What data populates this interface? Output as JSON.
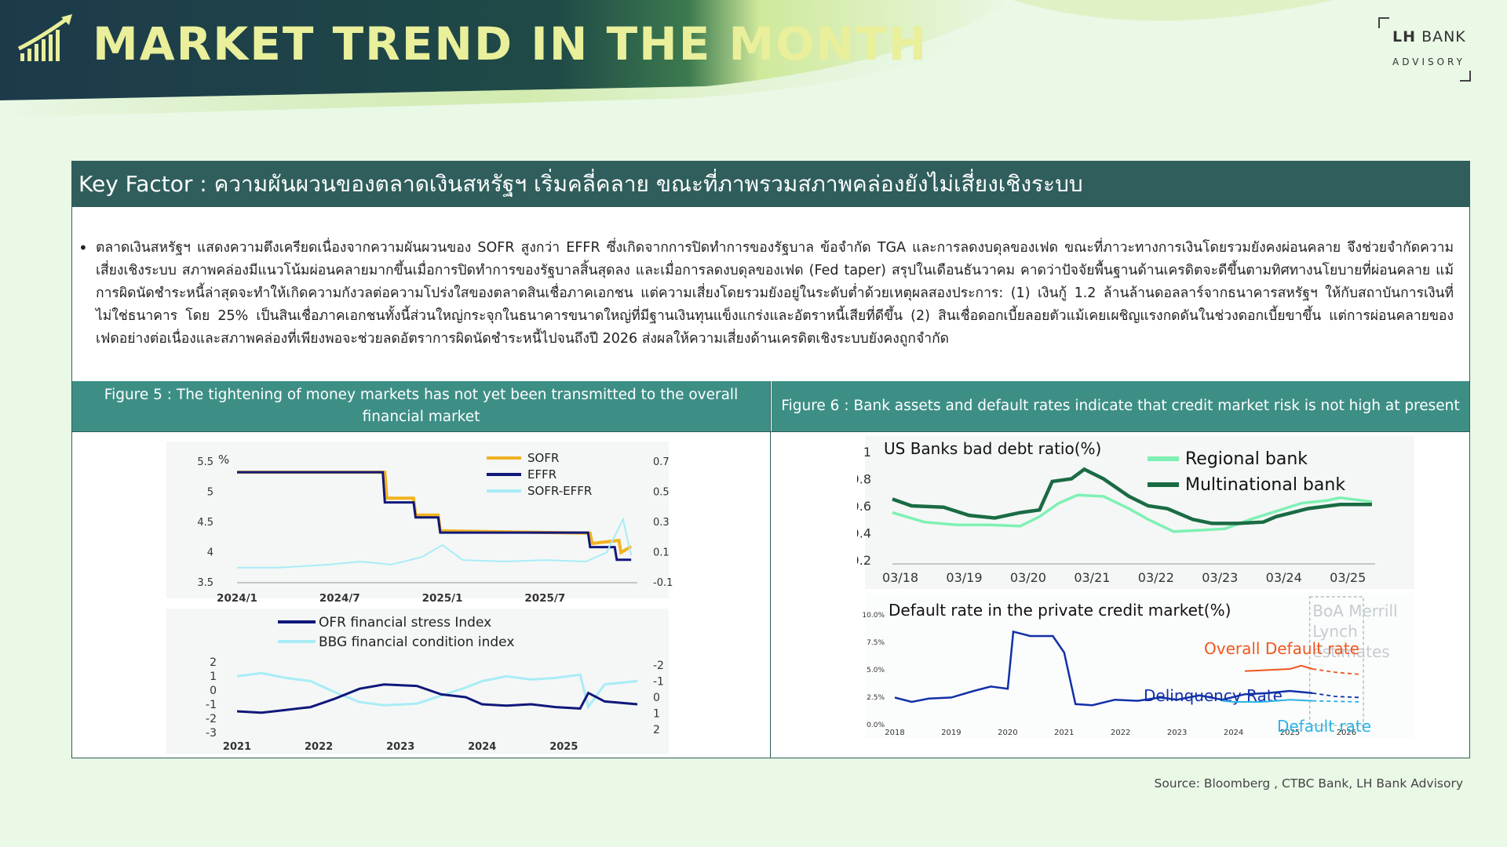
{
  "header": {
    "title": "MARKET TREND IN THE MONTH",
    "logo_lh": "LH",
    "logo_bank": "BANK",
    "logo_advisory": "ADVISORY"
  },
  "colors": {
    "header_dark": "#1d3a4a",
    "panel_teal": "#2f5e5c",
    "figure_teal": "#3d8f86",
    "sofr": "#f2b320",
    "effr": "#10187a",
    "spread": "#a9ecf6",
    "regional": "#7ff0b4",
    "multinational": "#1a6b44",
    "overall_default": "#f0561e",
    "delinquency": "#1130a8",
    "default_rate": "#2ab3e6"
  },
  "key_factor": {
    "title": "Key Factor : ความผันผวนของตลาดเงินสหรัฐฯ เริ่มคลี่คลาย ขณะที่ภาพรวมสภาพคล่องยังไม่เสี่ยงเชิงระบบ",
    "bullet": "ตลาดเงินสหรัฐฯ แสดงความตึงเครียดเนื่องจากความผันผวนของ SOFR สูงกว่า EFFR ซึ่งเกิดจากการปิดทำการของรัฐบาล ข้อจำกัด TGA และการลดงบดุลของเฟด ขณะที่ภาวะทางการเงินโดยรวมยังคงผ่อนคลาย จึงช่วยจำกัดความเสี่ยงเชิงระบบ สภาพคล่องมีแนวโน้มผ่อนคลายมากขึ้นเมื่อการปิดทำการของรัฐบาลสิ้นสุดลง และเมื่อการลดงบดุลของเฟด (Fed taper) สรุปในเดือนธันวาคม คาดว่าปัจจัยพื้นฐานด้านเครดิตจะดีขึ้นตามทิศทางนโยบายที่ผ่อนคลาย แม้การผิดนัดชำระหนี้ล่าสุดจะทำให้เกิดความกังวลต่อความโปร่งใสของตลาดสินเชื่อภาคเอกชน แต่ความเสี่ยงโดยรวมยังอยู่ในระดับต่ำด้วยเหตุผลสองประการ: (1) เงินกู้ 1.2 ล้านล้านดอลลาร์จากธนาคารสหรัฐฯ ให้กับสถาบันการเงินที่ไม่ใช่ธนาคาร โดย 25% เป็นสินเชื่อภาคเอกชนทั้งนี้ส่วนใหญ่กระจุกในธนาคารขนาดใหญ่ที่มีฐานเงินทุนแข็งแกร่งและอัตราหนี้เสียที่ดีขึ้น (2) สินเชื่อดอกเบี้ยลอยตัวแม้เคยเผชิญแรงกดดันในช่วงดอกเบี้ยขาขึ้น แต่การผ่อนคลายของเฟดอย่างต่อเนื่องและสภาพคล่องที่เพียงพอจะช่วยลดอัตราการผิดนัดชำระหนี้ไปจนถึงปี 2026 ส่งผลให้ความเสี่ยงด้านเครดิตเชิงระบบยังคงถูกจำกัด"
  },
  "figure5": {
    "caption": "Figure 5 : The tightening of money markets has not yet been transmitted to the overall financial market"
  },
  "figure6": {
    "caption": "Figure 6 : Bank assets and default rates indicate that credit market risk is not high at present"
  },
  "source": "Source: Bloomberg , CTBC Bank, LH Bank Advisory",
  "chart_data": [
    {
      "id": "sofr-effr",
      "type": "line",
      "y_unit_label": "%",
      "x_ticks": [
        "2024/1",
        "2024/7",
        "2025/1",
        "2025/7"
      ],
      "x_range": [
        2024.0,
        2025.95
      ],
      "x_tick_values": [
        2024.0,
        2024.5,
        2025.0,
        2025.5
      ],
      "ylim_left": [
        3.5,
        5.5
      ],
      "y_ticks_left": [
        "5.5",
        "5",
        "4.5",
        "4",
        "3.5"
      ],
      "ylim_right": [
        -0.1,
        0.7
      ],
      "y_ticks_right": [
        "0.7",
        "0.5",
        "0.3",
        "0.1",
        "-0.1"
      ],
      "legend_position": "top",
      "series": [
        {
          "name": "SOFR",
          "axis": "left",
          "x": [
            2024.0,
            2024.72,
            2024.73,
            2024.86,
            2024.87,
            2024.98,
            2024.99,
            2025.72,
            2025.73,
            2025.86,
            2025.87,
            2025.92
          ],
          "y": [
            5.33,
            5.33,
            4.9,
            4.9,
            4.62,
            4.62,
            4.36,
            4.32,
            4.15,
            4.2,
            4.0,
            4.1
          ]
        },
        {
          "name": "EFFR",
          "axis": "left",
          "x": [
            2024.0,
            2024.71,
            2024.72,
            2024.86,
            2024.87,
            2024.98,
            2024.99,
            2025.71,
            2025.72,
            2025.84,
            2025.85,
            2025.92
          ],
          "y": [
            5.33,
            5.33,
            4.83,
            4.83,
            4.58,
            4.58,
            4.33,
            4.33,
            4.09,
            4.09,
            3.88,
            3.88
          ]
        },
        {
          "name": "SOFR-EFFR",
          "axis": "right",
          "x": [
            2024.0,
            2024.2,
            2024.45,
            2024.6,
            2024.75,
            2024.9,
            2025.0,
            2025.1,
            2025.3,
            2025.5,
            2025.7,
            2025.8,
            2025.88,
            2025.92
          ],
          "y": [
            0.0,
            0.0,
            0.02,
            0.04,
            0.02,
            0.07,
            0.15,
            0.05,
            0.04,
            0.05,
            0.04,
            0.1,
            0.32,
            0.08
          ]
        }
      ]
    },
    {
      "id": "stress-index",
      "type": "line",
      "x_ticks": [
        "2021",
        "2022",
        "2023",
        "2024",
        "2025"
      ],
      "x_range": [
        2021.0,
        2025.9
      ],
      "x_tick_values": [
        2021.0,
        2022.0,
        2023.0,
        2024.0,
        2025.0
      ],
      "ylim_left": [
        -3,
        2
      ],
      "y_ticks_left": [
        "2",
        "1",
        "0",
        "-1",
        "-2",
        "-3"
      ],
      "ylim_right": [
        2,
        -2
      ],
      "y_ticks_right": [
        "-2",
        "-1",
        "0",
        "1",
        "2"
      ],
      "legend_position": "top-left",
      "series": [
        {
          "name": "OFR financial stress Index",
          "axis": "left",
          "x": [
            2021.0,
            2021.3,
            2021.6,
            2021.9,
            2022.2,
            2022.5,
            2022.8,
            2023.2,
            2023.5,
            2023.8,
            2024.0,
            2024.3,
            2024.6,
            2024.9,
            2025.2,
            2025.3,
            2025.5,
            2025.9
          ],
          "y": [
            -1.5,
            -1.6,
            -1.4,
            -1.2,
            -0.6,
            0.1,
            0.4,
            0.3,
            -0.3,
            -0.5,
            -1.0,
            -1.1,
            -1.0,
            -1.2,
            -1.3,
            -0.2,
            -0.8,
            -1.0
          ]
        },
        {
          "name": "BBG financial condition index",
          "axis": "right",
          "x": [
            2021.0,
            2021.3,
            2021.6,
            2021.9,
            2022.2,
            2022.5,
            2022.8,
            2023.2,
            2023.5,
            2023.8,
            2024.0,
            2024.3,
            2024.6,
            2024.9,
            2025.2,
            2025.3,
            2025.5,
            2025.9
          ],
          "y": [
            1.3,
            1.5,
            1.2,
            1.0,
            0.3,
            -0.3,
            -0.5,
            -0.4,
            0.1,
            0.6,
            1.0,
            1.3,
            1.1,
            1.2,
            1.4,
            -0.6,
            0.8,
            1.0
          ]
        }
      ]
    },
    {
      "id": "bad-debt",
      "type": "line",
      "title": "US Banks bad debt ratio(%)",
      "x_ticks": [
        "03/18",
        "03/19",
        "03/20",
        "03/21",
        "03/22",
        "03/23",
        "03/24",
        "03/25"
      ],
      "x_range": [
        2018.0,
        2025.55
      ],
      "x_tick_values": [
        2018.0,
        2019.0,
        2020.0,
        2021.0,
        2022.0,
        2023.0,
        2024.0,
        2025.0
      ],
      "ylim": [
        0.2,
        1.0
      ],
      "y_ticks": [
        "1",
        "0.8",
        "0.6",
        "0.4",
        "0.2"
      ],
      "legend_position": "top-right",
      "series": [
        {
          "name": "Regional bank",
          "x": [
            2018.0,
            2018.5,
            2019.0,
            2019.5,
            2020.0,
            2020.3,
            2020.6,
            2020.9,
            2021.3,
            2021.7,
            2022.0,
            2022.4,
            2022.8,
            2023.2,
            2023.6,
            2024.0,
            2024.4,
            2024.8,
            2025.0,
            2025.5
          ],
          "y": [
            0.55,
            0.48,
            0.46,
            0.46,
            0.45,
            0.52,
            0.62,
            0.68,
            0.67,
            0.58,
            0.5,
            0.41,
            0.42,
            0.43,
            0.5,
            0.56,
            0.62,
            0.64,
            0.66,
            0.63
          ]
        },
        {
          "name": "Multinational bank",
          "x": [
            2018.0,
            2018.3,
            2018.8,
            2019.2,
            2019.6,
            2020.0,
            2020.3,
            2020.5,
            2020.8,
            2021.0,
            2021.3,
            2021.7,
            2022.0,
            2022.3,
            2022.7,
            2023.0,
            2023.4,
            2023.8,
            2024.0,
            2024.5,
            2025.0,
            2025.5
          ],
          "y": [
            0.65,
            0.6,
            0.59,
            0.53,
            0.51,
            0.55,
            0.57,
            0.78,
            0.8,
            0.87,
            0.8,
            0.67,
            0.6,
            0.58,
            0.5,
            0.47,
            0.47,
            0.48,
            0.52,
            0.58,
            0.61,
            0.61
          ]
        }
      ]
    },
    {
      "id": "private-credit-default",
      "type": "line",
      "title": "Default rate in the private credit market(%)",
      "x_ticks": [
        "2018",
        "2019",
        "2020",
        "2021",
        "2022",
        "2023",
        "2024",
        "2025",
        "2026"
      ],
      "x_range": [
        2018.0,
        2026.3
      ],
      "x_tick_values": [
        2018.0,
        2019.0,
        2020.0,
        2021.0,
        2022.0,
        2023.0,
        2024.0,
        2025.0,
        2026.0
      ],
      "ylim": [
        0,
        10
      ],
      "y_ticks": [
        "10.0%",
        "7.5%",
        "5.0%",
        "2.5%",
        "0.0%"
      ],
      "annotations": [
        "BoA Merrill",
        "Lynch",
        "estimates"
      ],
      "series": [
        {
          "name": "Overall Default rate",
          "x": [
            2024.2,
            2024.6,
            2025.0,
            2025.2,
            2025.4
          ],
          "y": [
            4.8,
            4.9,
            5.0,
            5.3,
            5.0
          ],
          "estimate_x": [
            2025.4,
            2025.8,
            2026.25
          ],
          "estimate_y": [
            5.0,
            4.7,
            4.5
          ]
        },
        {
          "name": "Delinquency Rate",
          "x": [
            2018.0,
            2018.3,
            2018.6,
            2019.0,
            2019.4,
            2019.7,
            2020.0,
            2020.1,
            2020.4,
            2020.8,
            2021.0,
            2021.2,
            2021.5,
            2021.9,
            2022.3,
            2022.7,
            2023.0,
            2023.4,
            2023.8,
            2024.2,
            2024.6,
            2025.0,
            2025.4
          ],
          "y": [
            2.4,
            2.0,
            2.3,
            2.4,
            3.0,
            3.4,
            3.2,
            8.4,
            8.0,
            8.0,
            6.5,
            1.8,
            1.7,
            2.2,
            2.1,
            2.4,
            2.2,
            2.6,
            2.2,
            2.7,
            2.8,
            3.0,
            2.8
          ],
          "estimate_x": [
            2025.4,
            2025.8,
            2026.25
          ],
          "estimate_y": [
            2.8,
            2.5,
            2.4
          ]
        },
        {
          "name": "Default rate",
          "x": [
            2023.8,
            2024.0,
            2024.5,
            2025.0,
            2025.4
          ],
          "y": [
            2.1,
            2.0,
            2.0,
            2.2,
            2.1
          ],
          "estimate_x": [
            2025.4,
            2025.8,
            2026.25
          ],
          "estimate_y": [
            2.1,
            2.05,
            2.0
          ]
        }
      ]
    }
  ]
}
